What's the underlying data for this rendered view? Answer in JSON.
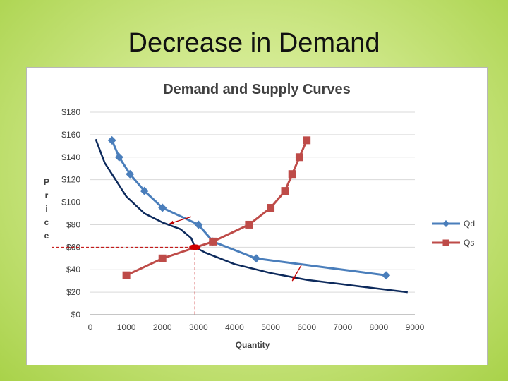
{
  "slide": {
    "title": "Decrease in Demand"
  },
  "chart_data": {
    "type": "line",
    "title": "Demand and Supply Curves",
    "xlabel": "Quantity",
    "ylabel": "Price",
    "ylabel_letters": [
      "P",
      "r",
      "i",
      "c",
      "e"
    ],
    "xlim": [
      0,
      9000
    ],
    "ylim": [
      0,
      180
    ],
    "x_ticks": [
      "0",
      "1000",
      "2000",
      "3000",
      "4000",
      "5000",
      "6000",
      "7000",
      "8000",
      "9000"
    ],
    "y_ticks": [
      "$0",
      "$20",
      "$40",
      "$60",
      "$80",
      "$100",
      "$120",
      "$140",
      "$160",
      "$180"
    ],
    "grid": true,
    "legend_position": "right",
    "series": [
      {
        "name": "Qd",
        "color": "#4a7ebb",
        "marker": "diamond",
        "points": [
          [
            600,
            155
          ],
          [
            800,
            140
          ],
          [
            1100,
            125
          ],
          [
            1500,
            110
          ],
          [
            2000,
            95
          ],
          [
            3000,
            80
          ],
          [
            3400,
            65
          ],
          [
            4600,
            50
          ],
          [
            8200,
            35
          ]
        ]
      },
      {
        "name": "Qs",
        "color": "#be4b48",
        "marker": "square",
        "points": [
          [
            1000,
            35
          ],
          [
            2000,
            50
          ],
          [
            3400,
            65
          ],
          [
            4400,
            80
          ],
          [
            5000,
            95
          ],
          [
            5400,
            110
          ],
          [
            5600,
            125
          ],
          [
            5800,
            140
          ],
          [
            6000,
            155
          ]
        ]
      }
    ],
    "new_demand": {
      "color": "#0d2a5c",
      "points": [
        [
          150,
          156
        ],
        [
          400,
          135
        ],
        [
          700,
          120
        ],
        [
          1000,
          105
        ],
        [
          1500,
          90
        ],
        [
          2000,
          82
        ],
        [
          2500,
          76
        ],
        [
          2800,
          68
        ],
        [
          2900,
          60
        ],
        [
          3200,
          55
        ],
        [
          4000,
          45
        ],
        [
          5000,
          37
        ],
        [
          6000,
          31
        ],
        [
          7000,
          27
        ],
        [
          8000,
          23
        ],
        [
          8800,
          20
        ]
      ]
    },
    "shift_arrows": [
      {
        "from": [
          2800,
          87
        ],
        "to": [
          2200,
          81
        ]
      },
      {
        "from": [
          5850,
          44
        ],
        "to": [
          5600,
          30
        ]
      }
    ],
    "equilibrium": {
      "x": 2900,
      "y": 60
    },
    "guide_color": "#c00000"
  }
}
